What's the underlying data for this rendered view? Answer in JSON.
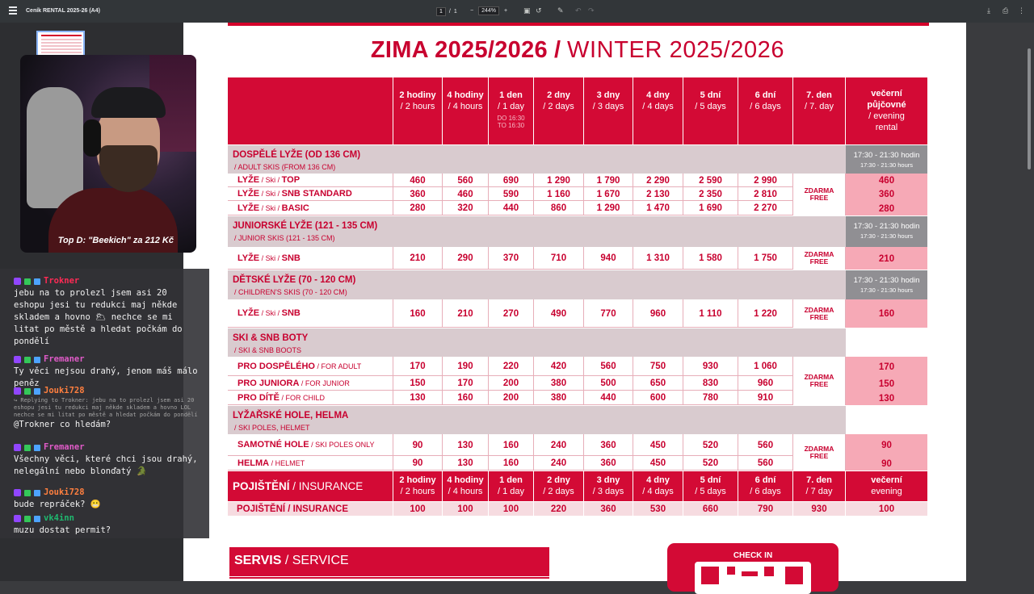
{
  "toolbar": {
    "title": "Ceník RENTAL 2025-26 (A4)",
    "page_current": "1",
    "page_separator": "/",
    "page_total": "1",
    "zoom_minus": "−",
    "zoom": "244%",
    "zoom_plus": "+"
  },
  "webcam": {
    "caption": "Top D: \"Beekich\" za 212 Kč"
  },
  "chat": [
    {
      "user": "Trokner",
      "color": "#ff2a55",
      "text": "jebu na to prolezl jsem asi 20 eshopu jesi tu redukci maj někde skladem a hovno 🌥 nechce se mi litat po městě a hledat počkám do pondělí"
    },
    {
      "user": "Fremaner",
      "color": "#e05bc8",
      "text": "Ty věci nejsou drahý, jenom máš málo peněz"
    },
    {
      "user": "Jouki728",
      "color": "#ff7f3f",
      "reply": "↪ Replying to Trokner: jebu na to prolezl jsem asi 20 eshopu jesi tu redukci maj někde skladem a hovno LOL nechce se mi litat po městě a hledat počkám do pondělí",
      "text": "@Trokner co hledám?"
    },
    {
      "user": "Fremaner",
      "color": "#e05bc8",
      "text": "Všechny věci, které chci jsou drahý, nelegální nebo blonďatý 🐊"
    },
    {
      "user": "Jouki728",
      "color": "#ff7f3f",
      "text": "bude repráček? 😬"
    },
    {
      "user": "vk4inn",
      "color": "#1fb86f",
      "text": "muzu dostat permit?"
    }
  ],
  "doc": {
    "title_cz": "ZIMA 2025/2026",
    "title_sep": "/",
    "title_en": "WINTER 2025/2026",
    "columns": [
      {
        "cz": "2 hodiny",
        "en": "/ 2 hours"
      },
      {
        "cz": "4 hodiny",
        "en": "/ 4 hours"
      },
      {
        "cz": "1 den",
        "en": "/ 1 day",
        "note1": "DO 16:30",
        "note2": "TO 16:30"
      },
      {
        "cz": "2 dny",
        "en": "/ 2 days"
      },
      {
        "cz": "3 dny",
        "en": "/ 3 days"
      },
      {
        "cz": "4 dny",
        "en": "/ 4 days"
      },
      {
        "cz": "5 dní",
        "en": "/ 5 days"
      },
      {
        "cz": "6 dní",
        "en": "/ 6 days"
      },
      {
        "cz": "7. den",
        "en": "/ 7. day"
      }
    ],
    "evening_header": {
      "l1": "večerní",
      "l2": "půjčovné",
      "l3": "/ evening",
      "l4": "rental"
    },
    "sections": [
      {
        "cz": "DOSPĚLÉ LYŽE (OD 136 CM)",
        "en": "/ ADULT SKIS (FROM 136 CM)",
        "hours1": "17:30 - 21:30 hodin",
        "hours2": "17:30 - 21:30 hours",
        "free_cz": "ZDARMA",
        "free_en": "FREE",
        "rows": [
          {
            "cz": "LYŽE",
            "en": " / Ski / ",
            "cz2": "TOP",
            "values": [
              "460",
              "560",
              "690",
              "1 290",
              "1 790",
              "2 290",
              "2  590",
              "2 990"
            ],
            "evening": "460"
          },
          {
            "cz": "LYŽE",
            "en": " / Ski / ",
            "cz2": "SNB STANDARD",
            "values": [
              "360",
              "460",
              "590",
              "1 160",
              "1 670",
              "2 130",
              "2 350",
              "2 810"
            ],
            "evening": "360"
          },
          {
            "cz": "LYŽE",
            "en": " / Ski / ",
            "cz2": "BASIC",
            "values": [
              "280",
              "320",
              "440",
              "860",
              "1 290",
              "1 470",
              "1 690",
              "2 270"
            ],
            "evening": "280"
          }
        ]
      },
      {
        "cz": "JUNIORSKÉ LYŽE  (121 - 135 CM)",
        "en": "/ JUNIOR SKIS (121 - 135 CM)",
        "hours1": "17:30 - 21:30 hodin",
        "hours2": "17:30 - 21:30 hours",
        "free_cz": "ZDARMA",
        "free_en": "FREE",
        "rows": [
          {
            "cz": "LYŽE",
            "en": " / Ski / ",
            "cz2": "SNB",
            "values": [
              "210",
              "290",
              "370",
              "710",
              "940",
              "1 310",
              "1 580",
              "1 750"
            ],
            "evening": "210"
          }
        ]
      },
      {
        "cz": "DĚTSKÉ LYŽE  (70 - 120 CM)",
        "en": "/ CHILDREN'S SKIS (70 - 120 CM)",
        "hours1": "17:30 - 21:30 hodin",
        "hours2": "17:30 - 21:30 hours",
        "free_cz": "ZDARMA",
        "free_en": "FREE",
        "rows": [
          {
            "cz": "LYŽE",
            "en": " / Ski / ",
            "cz2": "SNB",
            "values": [
              "160",
              "210",
              "270",
              "490",
              "770",
              "960",
              "1 110",
              "1 220"
            ],
            "evening": "160"
          }
        ]
      },
      {
        "cz": "SKI & SNB BOTY",
        "en": "/ SKI & SNB BOOTS",
        "free_cz": "ZDARMA",
        "free_en": "FREE",
        "rows": [
          {
            "cz": "PRO DOSPĚLÉHO",
            "en": " / FOR ADULT",
            "cz2": "",
            "values": [
              "170",
              "190",
              "220",
              "420",
              "560",
              "750",
              "930",
              "1 060"
            ],
            "evening": "170"
          },
          {
            "cz": "PRO JUNIORA",
            "en": " / FOR JUNIOR",
            "cz2": "",
            "values": [
              "150",
              "170",
              "200",
              "380",
              "500",
              "650",
              "830",
              "960"
            ],
            "evening": "150"
          },
          {
            "cz": "PRO DÍTĚ",
            "en": " / FOR CHILD",
            "cz2": "",
            "values": [
              "130",
              "160",
              "200",
              "380",
              "440",
              "600",
              "780",
              "910"
            ],
            "evening": "130"
          }
        ]
      },
      {
        "cz": "LYŽAŘSKÉ HOLE, HELMA",
        "en": "/ SKI POLES, HELMET",
        "free_cz": "ZDARMA",
        "free_en": "FREE",
        "rows": [
          {
            "cz": "SAMOTNÉ HOLE",
            "en": " / SKI POLES ONLY",
            "cz2": "",
            "values": [
              "90",
              "130",
              "160",
              "240",
              "360",
              "450",
              "520",
              "560"
            ],
            "evening": "90"
          },
          {
            "cz": "HELMA",
            "en": " / HELMET",
            "cz2": "",
            "values": [
              "90",
              "130",
              "160",
              "240",
              "360",
              "450",
              "520",
              "560"
            ],
            "evening": "90"
          }
        ]
      }
    ],
    "insurance": {
      "cz": "POJIŠTĚNÍ",
      "en": "/ INSURANCE",
      "columns": [
        {
          "cz": "2 hodiny",
          "en": "/ 2 hours"
        },
        {
          "cz": "4 hodiny",
          "en": "/ 4 hours"
        },
        {
          "cz": "1 den",
          "en": "/ 1 day"
        },
        {
          "cz": "2 dny",
          "en": "/ 2 days"
        },
        {
          "cz": "3 dny",
          "en": "/ 3 days"
        },
        {
          "cz": "4 dny",
          "en": "/ 4 days"
        },
        {
          "cz": "5 dní",
          "en": "/ 5 days"
        },
        {
          "cz": "6 dní",
          "en": "/ 6 days"
        },
        {
          "cz": "7. den",
          "en": "/ 7 day"
        }
      ],
      "evening_cz": "večerní",
      "evening_en": "evening",
      "row_label": "POJIŠTĚNÍ / INSURANCE",
      "values": [
        "100",
        "100",
        "100",
        "220",
        "360",
        "530",
        "660",
        "790",
        "930",
        "100"
      ]
    },
    "servis_cz": "SERVIS",
    "servis_en": "/ SERVICE",
    "checkin": "CHECK IN"
  }
}
